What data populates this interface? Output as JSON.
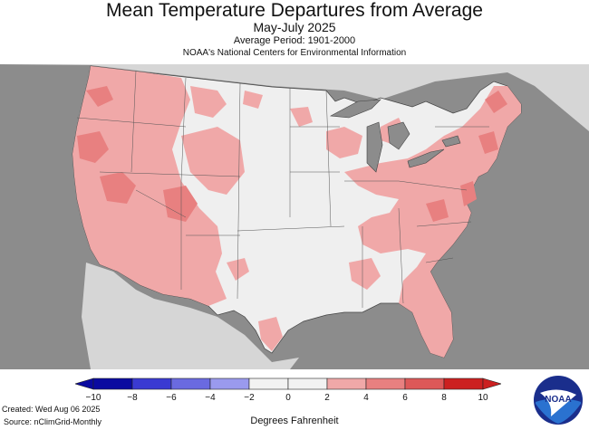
{
  "header": {
    "title": "Mean Temperature Departures from Average",
    "subtitle": "May-July 2025",
    "period": "Average Period: 1901-2000",
    "source": "NOAA's National Centers for Environmental Information"
  },
  "legend": {
    "ticks": [
      "−10",
      "−8",
      "−6",
      "−4",
      "−2",
      "0",
      "2",
      "4",
      "6",
      "8",
      "10"
    ],
    "colors": [
      "#0a0aa0",
      "#3a3ad2",
      "#6a6ae0",
      "#9a9aee",
      "#f2f2f2",
      "#f2f2f2",
      "#f0a8a8",
      "#e88080",
      "#dd5858",
      "#cc2020"
    ],
    "units_label": "Degrees Fahrenheit"
  },
  "footer": {
    "created": "Created: Wed Aug 06 2025",
    "source": "Source: nClimGrid-Monthly"
  },
  "logo": {
    "text": "NOAA"
  },
  "colors": {
    "background": "#8c8c8c",
    "land_neutral": "#efefef",
    "land_outside": "#d6d6d6",
    "warm_light": "#f0a8a8",
    "warm_medium": "#e88080",
    "lakes": "#8c8c8c"
  }
}
